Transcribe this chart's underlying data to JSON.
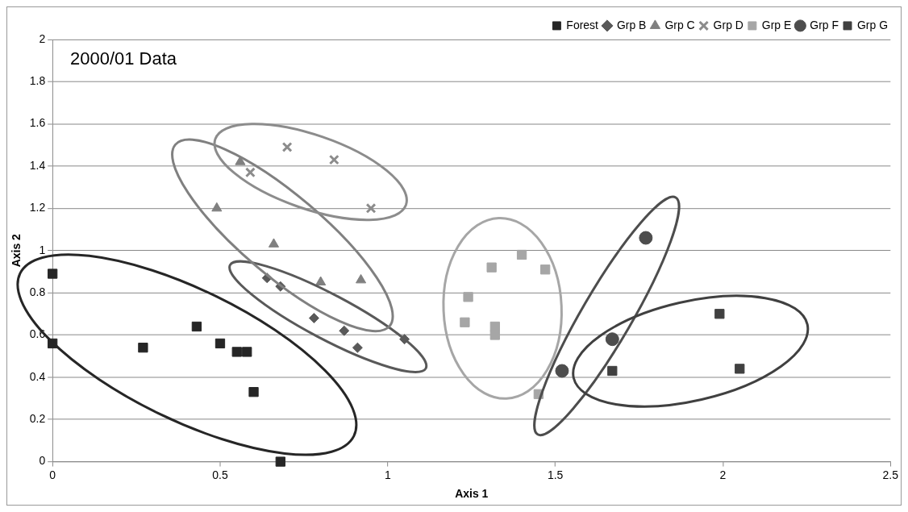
{
  "chart_data": {
    "type": "scatter",
    "title": "2000/01 Data",
    "xlabel": "Axis 1",
    "ylabel": "Axis 2",
    "xlim": [
      0,
      2.5
    ],
    "xticks": [
      0,
      0.5,
      1,
      1.5,
      2,
      2.5
    ],
    "ylim": [
      0,
      2
    ],
    "yticks": [
      0,
      0.2,
      0.4,
      0.6,
      0.8,
      1,
      1.2,
      1.4,
      1.6,
      1.8,
      2
    ],
    "grid": "y",
    "legend": "top right",
    "series": [
      {
        "name": "Forest",
        "color": "#262626",
        "marker": "square",
        "x": [
          0,
          0,
          0.27,
          0.43,
          0.5,
          0.55,
          0.58,
          0.6,
          0.68
        ],
        "values": [
          0.89,
          0.56,
          0.54,
          0.64,
          0.56,
          0.52,
          0.52,
          0.33,
          0
        ]
      },
      {
        "name": "Grp B",
        "color": "#595959",
        "marker": "diamond",
        "x": [
          0.64,
          0.68,
          0.78,
          0.87,
          0.91,
          1.05
        ],
        "values": [
          0.87,
          0.83,
          0.68,
          0.62,
          0.54,
          0.58
        ]
      },
      {
        "name": "Grp C",
        "color": "#808080",
        "marker": "triangle",
        "x": [
          0.56,
          0.49,
          0.66,
          0.8,
          0.92
        ],
        "values": [
          1.42,
          1.2,
          1.03,
          0.85,
          0.86
        ]
      },
      {
        "name": "Grp D",
        "color": "#8c8c8c",
        "marker": "cross",
        "x": [
          0.59,
          0.7,
          0.84,
          0.95
        ],
        "values": [
          1.37,
          1.49,
          1.43,
          1.2
        ]
      },
      {
        "name": "Grp E",
        "color": "#a6a6a6",
        "marker": "square",
        "x": [
          1.4,
          1.31,
          1.47,
          1.24,
          1.23,
          1.32,
          1.32,
          1.45
        ],
        "values": [
          0.98,
          0.92,
          0.91,
          0.78,
          0.66,
          0.64,
          0.6,
          0.32
        ]
      },
      {
        "name": "Grp F",
        "color": "#4d4d4d",
        "marker": "circle",
        "x": [
          1.77,
          1.67,
          1.52
        ],
        "values": [
          1.06,
          0.58,
          0.43
        ]
      },
      {
        "name": "Grp G",
        "color": "#404040",
        "marker": "square",
        "x": [
          1.99,
          1.67,
          2.05
        ],
        "values": [
          0.7,
          0.43,
          0.44
        ]
      }
    ]
  }
}
